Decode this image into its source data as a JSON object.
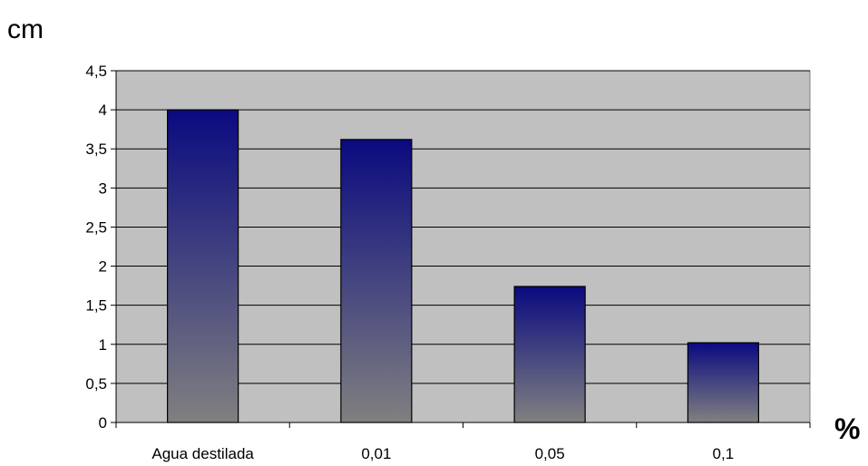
{
  "chart_data": {
    "type": "bar",
    "categories": [
      "Agua destilada",
      "0,01",
      "0,05",
      "0,1"
    ],
    "values": [
      4.0,
      3.62,
      1.74,
      1.02
    ],
    "ylabel": "cm",
    "xlabel": "%",
    "ylim": [
      0,
      4.5
    ],
    "yticks": [
      0,
      0.5,
      1,
      1.5,
      2,
      2.5,
      3,
      3.5,
      4,
      4.5
    ],
    "ytick_labels": [
      "0",
      "0,5",
      "1",
      "1,5",
      "2",
      "2,5",
      "3",
      "3,5",
      "4",
      "4,5"
    ],
    "grid": true,
    "legend": "none",
    "colors": {
      "plot_background": "#c0c0c0",
      "bar_top": "#0a0a80",
      "bar_bottom": "#808080",
      "gridline": "#000000"
    }
  }
}
